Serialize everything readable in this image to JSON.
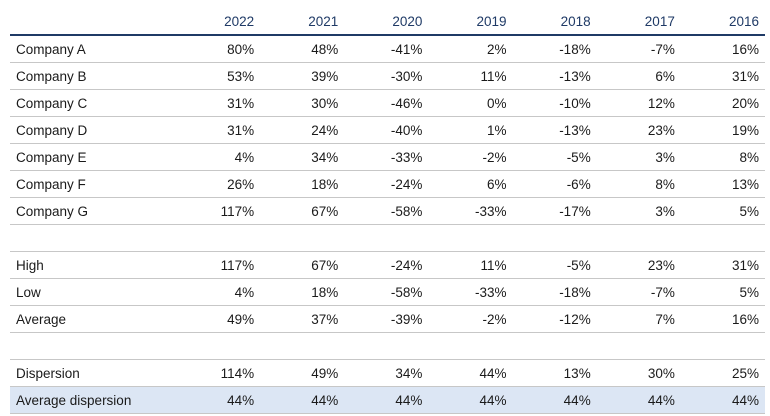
{
  "columns": [
    "2022",
    "2021",
    "2020",
    "2019",
    "2018",
    "2017",
    "2016"
  ],
  "companies": [
    {
      "label": "Company A",
      "values": [
        "80%",
        "48%",
        "-41%",
        "2%",
        "-18%",
        "-7%",
        "16%"
      ]
    },
    {
      "label": "Company B",
      "values": [
        "53%",
        "39%",
        "-30%",
        "11%",
        "-13%",
        "6%",
        "31%"
      ]
    },
    {
      "label": "Company C",
      "values": [
        "31%",
        "30%",
        "-46%",
        "0%",
        "-10%",
        "12%",
        "20%"
      ]
    },
    {
      "label": "Company D",
      "values": [
        "31%",
        "24%",
        "-40%",
        "1%",
        "-13%",
        "23%",
        "19%"
      ]
    },
    {
      "label": "Company E",
      "values": [
        "4%",
        "34%",
        "-33%",
        "-2%",
        "-5%",
        "3%",
        "8%"
      ]
    },
    {
      "label": "Company F",
      "values": [
        "26%",
        "18%",
        "-24%",
        "6%",
        "-6%",
        "8%",
        "13%"
      ]
    },
    {
      "label": "Company G",
      "values": [
        "117%",
        "67%",
        "-58%",
        "-33%",
        "-17%",
        "3%",
        "5%"
      ]
    }
  ],
  "stats": [
    {
      "label": "High",
      "values": [
        "117%",
        "67%",
        "-24%",
        "11%",
        "-5%",
        "23%",
        "31%"
      ]
    },
    {
      "label": "Low",
      "values": [
        "4%",
        "18%",
        "-58%",
        "-33%",
        "-18%",
        "-7%",
        "5%"
      ]
    },
    {
      "label": "Average",
      "values": [
        "49%",
        "37%",
        "-39%",
        "-2%",
        "-12%",
        "7%",
        "16%"
      ]
    }
  ],
  "dispersion": [
    {
      "label": "Dispersion",
      "values": [
        "114%",
        "49%",
        "34%",
        "44%",
        "13%",
        "30%",
        "25%"
      ]
    },
    {
      "label": "Average dispersion",
      "values": [
        "44%",
        "44%",
        "44%",
        "44%",
        "44%",
        "44%",
        "44%"
      ],
      "highlight": true
    }
  ],
  "colors": {
    "header_text": "#1f3a66",
    "highlight_row": "#dce6f4",
    "rule": "#c7c7c7"
  }
}
